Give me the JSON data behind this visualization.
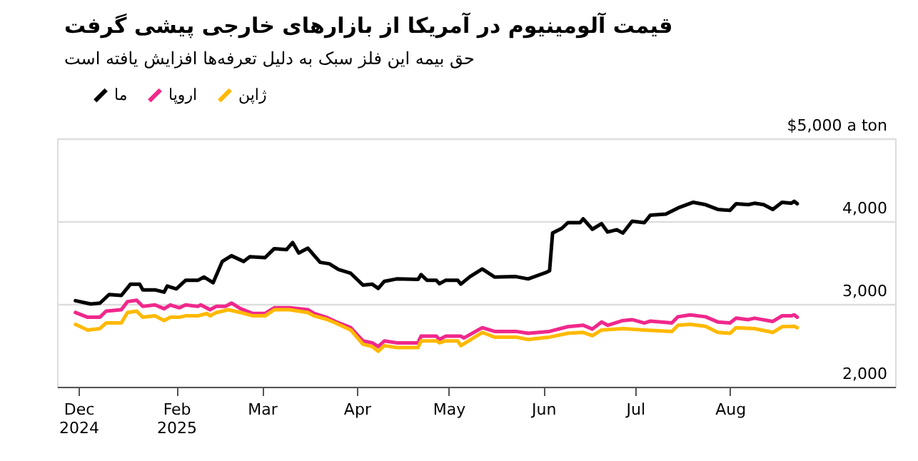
{
  "chart_data": {
    "type": "line",
    "title": "قیمت آلومینیوم در آمریکا از بازارهای خارجی پیشی گرفت",
    "subtitle": "حق بیمه این فلز سبک به دلیل تعرفه‌ها افزایش یافته است",
    "series": [
      {
        "name": "ما",
        "color": "#000000",
        "x": [
          "2024-12-30",
          "2025-01-04",
          "2025-01-07",
          "2025-01-10",
          "2025-01-14",
          "2025-01-17",
          "2025-01-20",
          "2025-01-21",
          "2025-01-25",
          "2025-01-28",
          "2025-01-29",
          "2025-02-01",
          "2025-02-04",
          "2025-02-08",
          "2025-02-10",
          "2025-02-13",
          "2025-02-16",
          "2025-02-19",
          "2025-02-23",
          "2025-02-25",
          "2025-03-02",
          "2025-03-05",
          "2025-03-09",
          "2025-03-11",
          "2025-03-13",
          "2025-03-16",
          "2025-03-20",
          "2025-03-23",
          "2025-03-26",
          "2025-03-30",
          "2025-04-03",
          "2025-04-06",
          "2025-04-08",
          "2025-04-10",
          "2025-04-14",
          "2025-04-21",
          "2025-04-22",
          "2025-04-24",
          "2025-04-27",
          "2025-04-28",
          "2025-04-30",
          "2025-05-04",
          "2025-05-05",
          "2025-05-08",
          "2025-05-12",
          "2025-05-16",
          "2025-05-23",
          "2025-05-27",
          "2025-06-02",
          "2025-06-03",
          "2025-06-04",
          "2025-06-07",
          "2025-06-09",
          "2025-06-13",
          "2025-06-14",
          "2025-06-17",
          "2025-06-20",
          "2025-06-22",
          "2025-06-25",
          "2025-06-27",
          "2025-06-30",
          "2025-07-04",
          "2025-07-06",
          "2025-07-11",
          "2025-07-15",
          "2025-07-20",
          "2025-07-24",
          "2025-07-28",
          "2025-08-01",
          "2025-08-03",
          "2025-08-07",
          "2025-08-09",
          "2025-08-12",
          "2025-08-15",
          "2025-08-18",
          "2025-08-21",
          "2025-08-22",
          "2025-08-23"
        ],
        "values": [
          3040,
          3000,
          3011,
          3114,
          3103,
          3240,
          3240,
          3171,
          3171,
          3143,
          3217,
          3183,
          3286,
          3286,
          3326,
          3257,
          3514,
          3583,
          3514,
          3571,
          3560,
          3669,
          3657,
          3743,
          3617,
          3674,
          3503,
          3486,
          3417,
          3371,
          3229,
          3240,
          3189,
          3274,
          3303,
          3297,
          3354,
          3286,
          3286,
          3246,
          3286,
          3286,
          3240,
          3331,
          3423,
          3326,
          3331,
          3303,
          3383,
          3400,
          3857,
          3914,
          3983,
          3983,
          4029,
          3903,
          3971,
          3869,
          3897,
          3857,
          4000,
          3983,
          4074,
          4086,
          4160,
          4229,
          4200,
          4143,
          4131,
          4211,
          4200,
          4217,
          4200,
          4143,
          4229,
          4217,
          4240,
          4211
        ]
      },
      {
        "name": "اروپا",
        "color": "#f0288c",
        "x": [
          "2024-12-30",
          "2025-01-03",
          "2025-01-07",
          "2025-01-09",
          "2025-01-14",
          "2025-01-16",
          "2025-01-19",
          "2025-01-21",
          "2025-01-25",
          "2025-01-28",
          "2025-01-30",
          "2025-02-02",
          "2025-02-04",
          "2025-02-08",
          "2025-02-09",
          "2025-02-12",
          "2025-02-14",
          "2025-02-17",
          "2025-02-19",
          "2025-02-22",
          "2025-02-26",
          "2025-03-02",
          "2025-03-05",
          "2025-03-10",
          "2025-03-16",
          "2025-03-18",
          "2025-03-22",
          "2025-03-25",
          "2025-03-30",
          "2025-04-03",
          "2025-04-06",
          "2025-04-08",
          "2025-04-10",
          "2025-04-14",
          "2025-04-21",
          "2025-04-22",
          "2025-04-27",
          "2025-04-28",
          "2025-04-30",
          "2025-05-05",
          "2025-05-06",
          "2025-05-12",
          "2025-05-16",
          "2025-05-23",
          "2025-05-27",
          "2025-06-03",
          "2025-06-09",
          "2025-06-14",
          "2025-06-17",
          "2025-06-20",
          "2025-06-22",
          "2025-06-27",
          "2025-06-30",
          "2025-07-04",
          "2025-07-06",
          "2025-07-13",
          "2025-07-15",
          "2025-07-19",
          "2025-07-24",
          "2025-07-28",
          "2025-08-01",
          "2025-08-03",
          "2025-08-07",
          "2025-08-09",
          "2025-08-15",
          "2025-08-18",
          "2025-08-21",
          "2025-08-22",
          "2025-08-23"
        ],
        "values": [
          2897,
          2840,
          2840,
          2914,
          2931,
          3029,
          3046,
          2971,
          2989,
          2943,
          2989,
          2954,
          2989,
          2971,
          2989,
          2931,
          2971,
          2971,
          3011,
          2943,
          2886,
          2886,
          2954,
          2954,
          2931,
          2886,
          2840,
          2789,
          2714,
          2554,
          2531,
          2486,
          2554,
          2531,
          2531,
          2611,
          2611,
          2571,
          2611,
          2611,
          2589,
          2714,
          2669,
          2669,
          2646,
          2669,
          2726,
          2743,
          2697,
          2783,
          2743,
          2800,
          2811,
          2771,
          2794,
          2771,
          2846,
          2869,
          2846,
          2783,
          2771,
          2829,
          2811,
          2829,
          2789,
          2857,
          2857,
          2869,
          2840
        ]
      },
      {
        "name": "ژاپن",
        "color": "#ffb900",
        "x": [
          "2024-12-30",
          "2025-01-03",
          "2025-01-07",
          "2025-01-09",
          "2025-01-14",
          "2025-01-16",
          "2025-01-19",
          "2025-01-21",
          "2025-01-25",
          "2025-01-28",
          "2025-01-30",
          "2025-02-02",
          "2025-02-04",
          "2025-02-08",
          "2025-02-11",
          "2025-02-12",
          "2025-02-14",
          "2025-02-18",
          "2025-02-22",
          "2025-02-26",
          "2025-03-02",
          "2025-03-05",
          "2025-03-10",
          "2025-03-16",
          "2025-03-18",
          "2025-03-22",
          "2025-03-25",
          "2025-03-30",
          "2025-04-03",
          "2025-04-06",
          "2025-04-08",
          "2025-04-10",
          "2025-04-14",
          "2025-04-21",
          "2025-04-22",
          "2025-04-27",
          "2025-04-28",
          "2025-04-30",
          "2025-05-04",
          "2025-05-05",
          "2025-05-12",
          "2025-05-16",
          "2025-05-23",
          "2025-05-27",
          "2025-06-03",
          "2025-06-09",
          "2025-06-14",
          "2025-06-17",
          "2025-06-20",
          "2025-06-27",
          "2025-07-04",
          "2025-07-13",
          "2025-07-15",
          "2025-07-19",
          "2025-07-24",
          "2025-07-28",
          "2025-08-01",
          "2025-08-03",
          "2025-08-09",
          "2025-08-15",
          "2025-08-18",
          "2025-08-22",
          "2025-08-23"
        ],
        "values": [
          2754,
          2686,
          2703,
          2771,
          2771,
          2897,
          2914,
          2840,
          2857,
          2800,
          2840,
          2840,
          2857,
          2857,
          2886,
          2857,
          2897,
          2931,
          2897,
          2857,
          2857,
          2931,
          2931,
          2897,
          2857,
          2817,
          2771,
          2686,
          2514,
          2486,
          2429,
          2497,
          2474,
          2474,
          2554,
          2554,
          2531,
          2554,
          2554,
          2497,
          2657,
          2600,
          2600,
          2571,
          2600,
          2646,
          2657,
          2617,
          2686,
          2703,
          2686,
          2669,
          2743,
          2754,
          2731,
          2657,
          2646,
          2714,
          2703,
          2657,
          2726,
          2731,
          2714
        ]
      }
    ],
    "xlim": [
      "2024-12-24",
      "2025-09-24"
    ],
    "xticks": [
      {
        "value": "2024-12-31",
        "label": "Dec 2024"
      },
      {
        "value": "2025-02-01",
        "label": "Feb 2025"
      },
      {
        "value": "2025-03-01",
        "label": "Mar"
      },
      {
        "value": "2025-04-01",
        "label": "Apr"
      },
      {
        "value": "2025-05-01",
        "label": "May"
      },
      {
        "value": "2025-06-01",
        "label": "Jun"
      },
      {
        "value": "2025-07-01",
        "label": "Jul"
      },
      {
        "value": "2025-08-01",
        "label": "Aug"
      }
    ],
    "ylim": [
      2000,
      5000
    ],
    "yticks": [
      {
        "value": 2000,
        "label": "2,000"
      },
      {
        "value": 3000,
        "label": "3,000"
      },
      {
        "value": 4000,
        "label": "4,000"
      },
      {
        "value": 5000,
        "label": "$5,000 a ton"
      }
    ],
    "grid": "y",
    "legend": "top left",
    "marker": "none",
    "line_style": "solid"
  }
}
